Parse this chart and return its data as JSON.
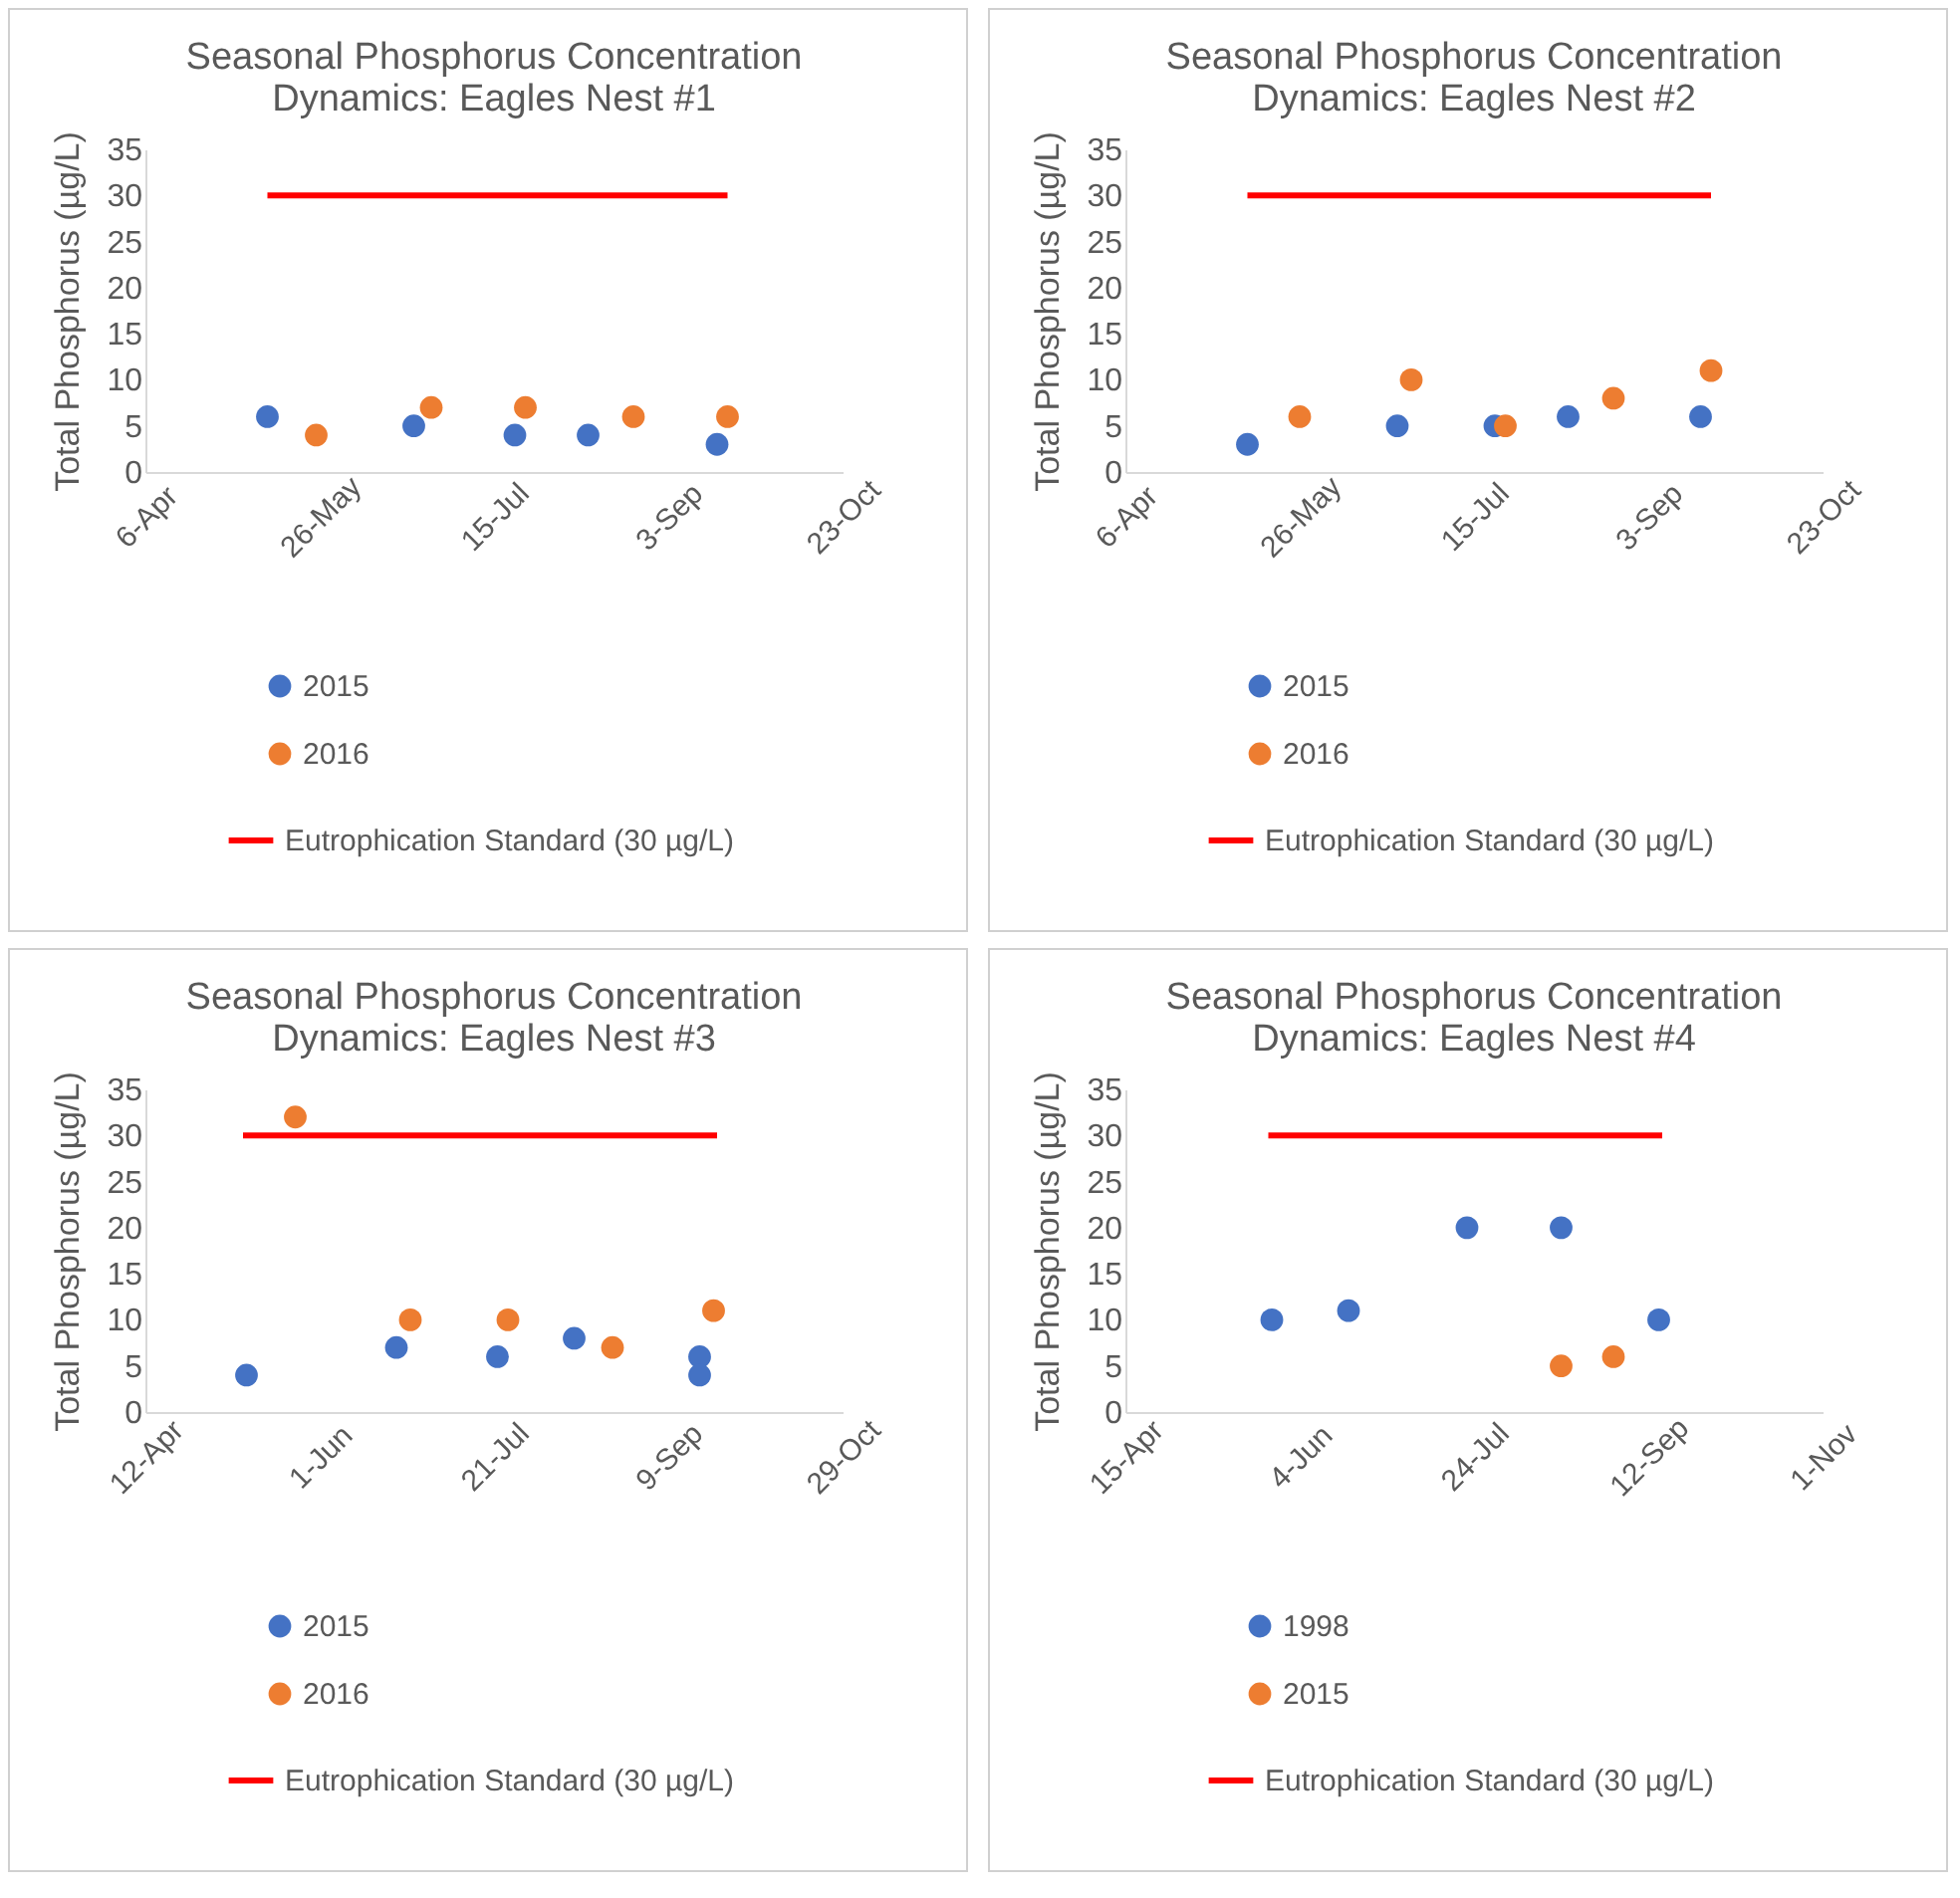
{
  "chart_data": [
    {
      "type": "scatter",
      "title": "Seasonal Phosphorus Concentration Dynamics: Eagles Nest #1",
      "ylabel": "Total Phosphorus (µg/L)",
      "xlim": [
        "--04-06",
        "--10-23"
      ],
      "xticks": [
        {
          "value": "--04-06",
          "label": "6-Apr"
        },
        {
          "value": "--05-26",
          "label": "26-May"
        },
        {
          "value": "--07-15",
          "label": "15-Jul"
        },
        {
          "value": "--09-03",
          "label": "3-Sep"
        },
        {
          "value": "--10-23",
          "label": "23-Oct"
        }
      ],
      "ylim": [
        0,
        35
      ],
      "yticks": [
        0,
        5,
        10,
        15,
        20,
        25,
        30,
        35
      ],
      "grid": false,
      "legend": "bottom",
      "marker": "circle",
      "series": [
        {
          "name": "2015",
          "color": "#4472c4",
          "x": [
            "--05-11",
            "--06-22",
            "--07-21",
            "--08-11",
            "--09-17"
          ],
          "values": [
            6,
            5,
            4,
            4,
            3
          ]
        },
        {
          "name": "2016",
          "color": "#ed7d31",
          "x": [
            "--05-25",
            "--06-27",
            "--07-24",
            "--08-24",
            "--09-20"
          ],
          "values": [
            4,
            7,
            7,
            6,
            6
          ]
        },
        {
          "name": "Eutrophication Standard (30 µg/L)",
          "type": "line",
          "color": "#ff0000",
          "x": [
            "--05-11",
            "--09-20"
          ],
          "values": [
            30,
            30
          ],
          "marker": "none"
        }
      ]
    },
    {
      "type": "scatter",
      "title": "Seasonal Phosphorus Concentration Dynamics: Eagles Nest #2",
      "ylabel": "Total Phosphorus (µg/L)",
      "xlim": [
        "--04-06",
        "--10-23"
      ],
      "xticks": [
        {
          "value": "--04-06",
          "label": "6-Apr"
        },
        {
          "value": "--05-26",
          "label": "26-May"
        },
        {
          "value": "--07-15",
          "label": "15-Jul"
        },
        {
          "value": "--09-03",
          "label": "3-Sep"
        },
        {
          "value": "--10-23",
          "label": "23-Oct"
        }
      ],
      "ylim": [
        0,
        35
      ],
      "yticks": [
        0,
        5,
        10,
        15,
        20,
        25,
        30,
        35
      ],
      "grid": false,
      "legend": "bottom",
      "marker": "circle",
      "series": [
        {
          "name": "2015",
          "color": "#4472c4",
          "x": [
            "--05-11",
            "--06-23",
            "--07-21",
            "--08-11",
            "--09-18"
          ],
          "values": [
            3,
            5,
            5,
            6,
            6
          ]
        },
        {
          "name": "2016",
          "color": "#ed7d31",
          "x": [
            "--05-26",
            "--06-27",
            "--07-24",
            "--08-24",
            "--09-21"
          ],
          "values": [
            6,
            10,
            5,
            8,
            11
          ]
        },
        {
          "name": "Eutrophication Standard (30 µg/L)",
          "type": "line",
          "color": "#ff0000",
          "x": [
            "--05-11",
            "--09-21"
          ],
          "values": [
            30,
            30
          ],
          "marker": "none"
        }
      ]
    },
    {
      "type": "scatter",
      "title": "Seasonal Phosphorus Concentration Dynamics: Eagles Nest #3",
      "ylabel": "Total Phosphorus (µg/L)",
      "xlim": [
        "--04-12",
        "--10-29"
      ],
      "xticks": [
        {
          "value": "--04-12",
          "label": "12-Apr"
        },
        {
          "value": "--06-01",
          "label": "1-Jun"
        },
        {
          "value": "--07-21",
          "label": "21-Jul"
        },
        {
          "value": "--09-09",
          "label": "9-Sep"
        },
        {
          "value": "--10-29",
          "label": "29-Oct"
        }
      ],
      "ylim": [
        0,
        35
      ],
      "yticks": [
        0,
        5,
        10,
        15,
        20,
        25,
        30,
        35
      ],
      "grid": false,
      "legend": "bottom",
      "marker": "circle",
      "series": [
        {
          "name": "2015",
          "color": "#4472c4",
          "x": [
            "--05-11",
            "--06-23",
            "--07-22",
            "--08-13",
            "--09-18",
            "--09-18"
          ],
          "values": [
            4,
            7,
            6,
            8,
            6,
            4
          ]
        },
        {
          "name": "2016",
          "color": "#ed7d31",
          "x": [
            "--05-25",
            "--06-27",
            "--07-25",
            "--08-24",
            "--09-22"
          ],
          "values": [
            32,
            10,
            10,
            7,
            11
          ]
        },
        {
          "name": "Eutrophication Standard (30 µg/L)",
          "type": "line",
          "color": "#ff0000",
          "x": [
            "--05-10",
            "--09-23"
          ],
          "values": [
            30,
            30
          ],
          "marker": "none"
        }
      ]
    },
    {
      "type": "scatter",
      "title": "Seasonal Phosphorus Concentration Dynamics: Eagles Nest #4",
      "ylabel": "Total Phosphorus (µg/L)",
      "xlim": [
        "--04-15",
        "--11-01"
      ],
      "xticks": [
        {
          "value": "--04-15",
          "label": "15-Apr"
        },
        {
          "value": "--06-04",
          "label": "4-Jun"
        },
        {
          "value": "--07-24",
          "label": "24-Jul"
        },
        {
          "value": "--09-12",
          "label": "12-Sep"
        },
        {
          "value": "--11-01",
          "label": "1-Nov"
        }
      ],
      "ylim": [
        0,
        35
      ],
      "yticks": [
        0,
        5,
        10,
        15,
        20,
        25,
        30,
        35
      ],
      "grid": false,
      "legend": "bottom",
      "marker": "circle",
      "series": [
        {
          "name": "1998",
          "color": "#4472c4",
          "x": [
            "--05-27",
            "--06-18",
            "--07-22",
            "--08-18",
            "--09-15"
          ],
          "values": [
            10,
            11,
            20,
            20,
            10
          ]
        },
        {
          "name": "2015",
          "color": "#ed7d31",
          "x": [
            "--08-18",
            "--09-02"
          ],
          "values": [
            5,
            6
          ]
        },
        {
          "name": "Eutrophication Standard (30 µg/L)",
          "type": "line",
          "color": "#ff0000",
          "x": [
            "--05-26",
            "--09-16"
          ],
          "values": [
            30,
            30
          ],
          "marker": "none"
        }
      ]
    }
  ]
}
